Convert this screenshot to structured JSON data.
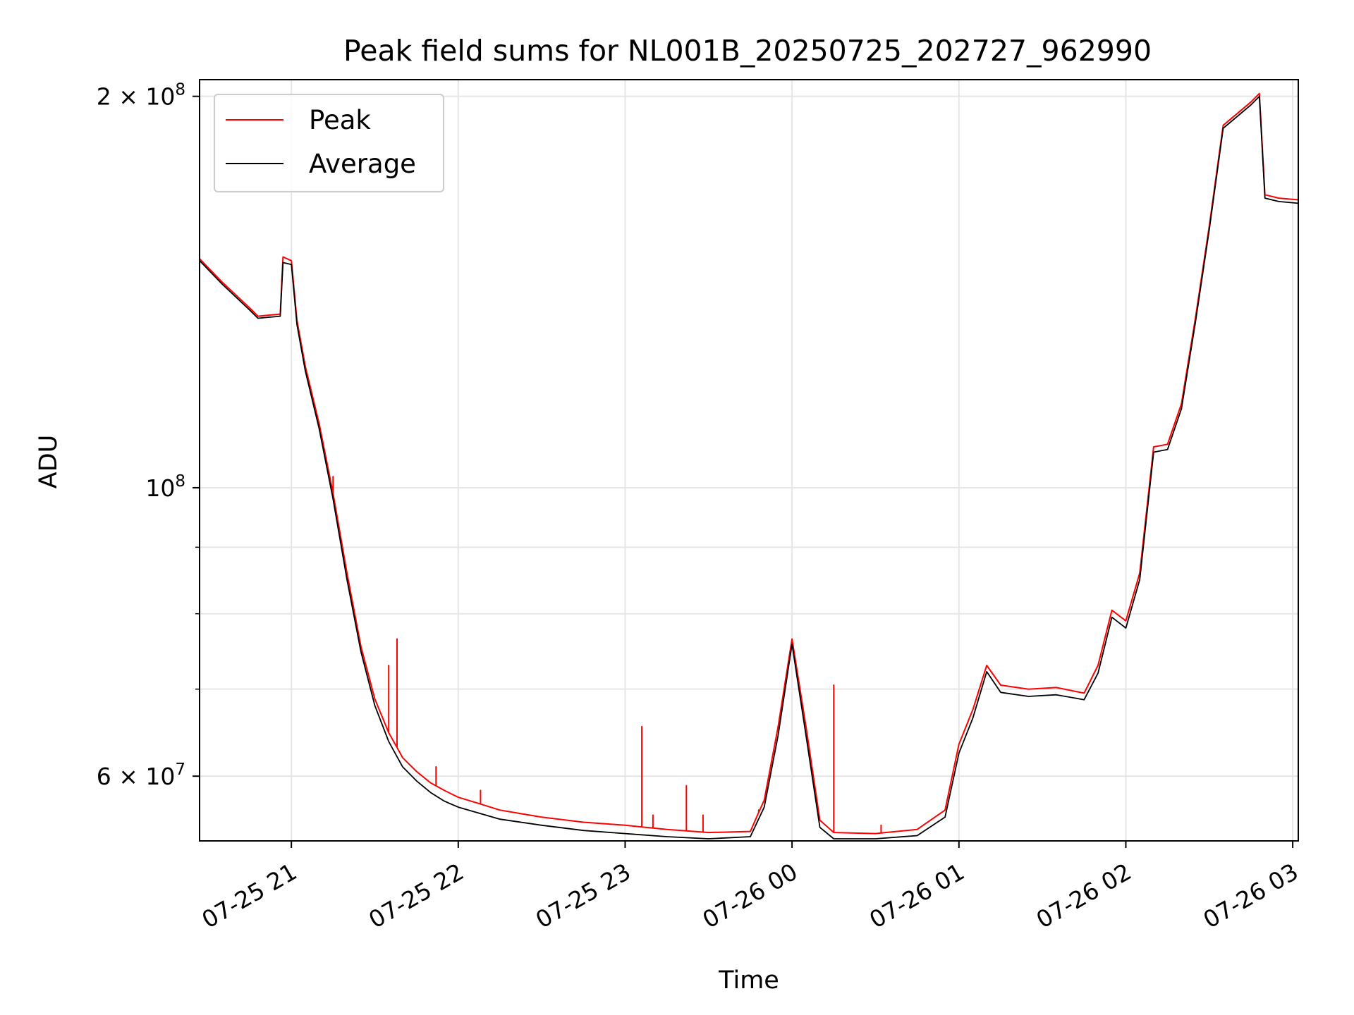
{
  "chart_data": {
    "type": "line",
    "title": "Peak field sums for NL001B_20250725_202727_962990",
    "xlabel": "Time",
    "ylabel": "ADU",
    "y_scale": "log",
    "ylim": [
      53500000,
      206000000
    ],
    "xlim": [
      "2025-07-25 20:27",
      "2025-07-26 03:02"
    ],
    "grid": true,
    "legend_position": "top-left",
    "x_ticks": [
      {
        "label": "07-25 21",
        "time": "2025-07-25 21:00"
      },
      {
        "label": "07-25 22",
        "time": "2025-07-25 22:00"
      },
      {
        "label": "07-25 23",
        "time": "2025-07-25 23:00"
      },
      {
        "label": "07-26 00",
        "time": "2025-07-26 00:00"
      },
      {
        "label": "07-26 01",
        "time": "2025-07-26 01:00"
      },
      {
        "label": "07-26 02",
        "time": "2025-07-26 02:00"
      },
      {
        "label": "07-26 03",
        "time": "2025-07-26 03:00"
      }
    ],
    "y_ticks": [
      {
        "value": 60000000,
        "label_base": "6 × 10",
        "label_exp": "7"
      },
      {
        "value": 100000000,
        "label_base": "10",
        "label_exp": "8"
      },
      {
        "value": 200000000,
        "label_base": "2 × 10",
        "label_exp": "8"
      }
    ],
    "y_minor_ticks": [
      70000000,
      80000000,
      90000000
    ],
    "series": [
      {
        "name": "Peak",
        "color": "#ff0000",
        "x": [
          "2025-07-25 20:27",
          "2025-07-25 20:35",
          "2025-07-25 20:45",
          "2025-07-25 20:48",
          "2025-07-25 20:56",
          "2025-07-25 20:57",
          "2025-07-25 21:00",
          "2025-07-25 21:02",
          "2025-07-25 21:05",
          "2025-07-25 21:10",
          "2025-07-25 21:15",
          "2025-07-25 21:20",
          "2025-07-25 21:25",
          "2025-07-25 21:30",
          "2025-07-25 21:35",
          "2025-07-25 21:40",
          "2025-07-25 21:45",
          "2025-07-25 21:50",
          "2025-07-25 21:55",
          "2025-07-25 22:00",
          "2025-07-25 22:15",
          "2025-07-25 22:30",
          "2025-07-25 22:45",
          "2025-07-25 23:00",
          "2025-07-25 23:15",
          "2025-07-25 23:30",
          "2025-07-25 23:45",
          "2025-07-25 23:50",
          "2025-07-25 23:55",
          "2025-07-26 00:00",
          "2025-07-26 00:05",
          "2025-07-26 00:10",
          "2025-07-26 00:15",
          "2025-07-26 00:30",
          "2025-07-26 00:45",
          "2025-07-26 00:55",
          "2025-07-26 01:00",
          "2025-07-26 01:05",
          "2025-07-26 01:10",
          "2025-07-26 01:15",
          "2025-07-26 01:25",
          "2025-07-26 01:35",
          "2025-07-26 01:45",
          "2025-07-26 01:50",
          "2025-07-26 01:55",
          "2025-07-26 02:00",
          "2025-07-26 02:05",
          "2025-07-26 02:10",
          "2025-07-26 02:15",
          "2025-07-26 02:20",
          "2025-07-26 02:25",
          "2025-07-26 02:30",
          "2025-07-26 02:35",
          "2025-07-26 02:45",
          "2025-07-26 02:48",
          "2025-07-26 02:50",
          "2025-07-26 02:55",
          "2025-07-26 03:02"
        ],
        "values": [
          150000000,
          144000000,
          137500000,
          135500000,
          136000000,
          150500000,
          149500000,
          134500000,
          124000000,
          112000000,
          99000000,
          86000000,
          75500000,
          68800000,
          64800000,
          62000000,
          60500000,
          59300000,
          58500000,
          57800000,
          56500000,
          55800000,
          55300000,
          55000000,
          54600000,
          54300000,
          54400000,
          57500000,
          65500000,
          76500000,
          65500000,
          55500000,
          54300000,
          54200000,
          54600000,
          56500000,
          63500000,
          67500000,
          73000000,
          70500000,
          70000000,
          70200000,
          69500000,
          73000000,
          80500000,
          79000000,
          86000000,
          107500000,
          108000000,
          116000000,
          135000000,
          159000000,
          190000000,
          198000000,
          201000000,
          168000000,
          167000000,
          166500000
        ]
      },
      {
        "name": "Average",
        "color": "#000000",
        "x": [
          "2025-07-25 20:27",
          "2025-07-25 20:35",
          "2025-07-25 20:45",
          "2025-07-25 20:48",
          "2025-07-25 20:56",
          "2025-07-25 20:57",
          "2025-07-25 21:00",
          "2025-07-25 21:02",
          "2025-07-25 21:05",
          "2025-07-25 21:10",
          "2025-07-25 21:15",
          "2025-07-25 21:20",
          "2025-07-25 21:25",
          "2025-07-25 21:30",
          "2025-07-25 21:35",
          "2025-07-25 21:40",
          "2025-07-25 21:45",
          "2025-07-25 21:50",
          "2025-07-25 21:55",
          "2025-07-25 22:00",
          "2025-07-25 22:15",
          "2025-07-25 22:30",
          "2025-07-25 22:45",
          "2025-07-25 23:00",
          "2025-07-25 23:15",
          "2025-07-25 23:30",
          "2025-07-25 23:45",
          "2025-07-25 23:50",
          "2025-07-25 23:55",
          "2025-07-26 00:00",
          "2025-07-26 00:05",
          "2025-07-26 00:10",
          "2025-07-26 00:15",
          "2025-07-26 00:30",
          "2025-07-26 00:45",
          "2025-07-26 00:55",
          "2025-07-26 01:00",
          "2025-07-26 01:05",
          "2025-07-26 01:10",
          "2025-07-26 01:15",
          "2025-07-26 01:25",
          "2025-07-26 01:35",
          "2025-07-26 01:45",
          "2025-07-26 01:50",
          "2025-07-26 01:55",
          "2025-07-26 02:00",
          "2025-07-26 02:05",
          "2025-07-26 02:10",
          "2025-07-26 02:15",
          "2025-07-26 02:20",
          "2025-07-26 02:25",
          "2025-07-26 02:30",
          "2025-07-26 02:35",
          "2025-07-26 02:45",
          "2025-07-26 02:48",
          "2025-07-26 02:50",
          "2025-07-26 02:55",
          "2025-07-26 03:02"
        ],
        "values": [
          149500000,
          143500000,
          137000000,
          135000000,
          135500000,
          149000000,
          148500000,
          133500000,
          123000000,
          111000000,
          98000000,
          85000000,
          74800000,
          68000000,
          63800000,
          61000000,
          59500000,
          58300000,
          57400000,
          56800000,
          55600000,
          55000000,
          54500000,
          54200000,
          53900000,
          53700000,
          53900000,
          56800000,
          64500000,
          75800000,
          64500000,
          54800000,
          53700000,
          53700000,
          54000000,
          55800000,
          62500000,
          66500000,
          72200000,
          69600000,
          69100000,
          69300000,
          68700000,
          72000000,
          79500000,
          78000000,
          85000000,
          106500000,
          107000000,
          115000000,
          134000000,
          158000000,
          189000000,
          197000000,
          200000000,
          167000000,
          166000000,
          165500000
        ]
      }
    ],
    "spikes": {
      "series": "Peak",
      "points": [
        {
          "x": "2025-07-25 21:15",
          "y": 102000000
        },
        {
          "x": "2025-07-25 21:35",
          "y": 73000000
        },
        {
          "x": "2025-07-25 21:38",
          "y": 76500000
        },
        {
          "x": "2025-07-25 21:52",
          "y": 61000000
        },
        {
          "x": "2025-07-25 22:08",
          "y": 58500000
        },
        {
          "x": "2025-07-25 23:06",
          "y": 65500000
        },
        {
          "x": "2025-07-25 23:10",
          "y": 56000000
        },
        {
          "x": "2025-07-25 23:22",
          "y": 59000000
        },
        {
          "x": "2025-07-25 23:28",
          "y": 56000000
        },
        {
          "x": "2025-07-25 23:48",
          "y": 56500000
        },
        {
          "x": "2025-07-26 00:15",
          "y": 70500000
        },
        {
          "x": "2025-07-26 00:32",
          "y": 55000000
        }
      ]
    }
  }
}
